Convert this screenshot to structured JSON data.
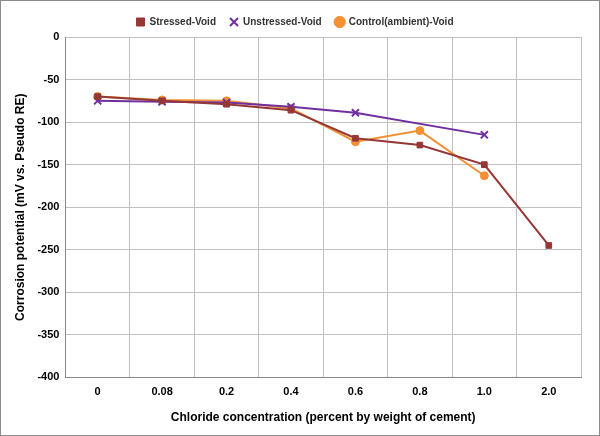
{
  "chart_data": {
    "type": "line",
    "x_label": "Chloride concentration (percent by weight of cement)",
    "y_label": "Corrosion potential (mV vs. Pseudo RE)",
    "categories": [
      "0",
      "0.08",
      "0.2",
      "0.4",
      "0.6",
      "0.8",
      "1.0",
      "2.0"
    ],
    "series": [
      {
        "name": "Stressed-Void",
        "color": "#953735",
        "marker": "square",
        "line_style": "solid",
        "values": [
          -70,
          -75,
          -79,
          -86,
          -119,
          -127,
          -150,
          -245
        ]
      },
      {
        "name": "Unstressed-Void",
        "color": "#7030a0",
        "marker": "x",
        "line_style": "solid",
        "values": [
          -75,
          -76,
          -77,
          -82,
          -89,
          null,
          -115,
          null
        ]
      },
      {
        "name": "Control(ambient)-Void",
        "color": "#f39034",
        "marker": "circle",
        "line_style": "solid",
        "values": [
          -70,
          -74,
          -75,
          -84,
          -123,
          -110,
          -163,
          null
        ]
      }
    ],
    "ylim": [
      -400,
      0
    ],
    "yticks": [
      -400,
      -350,
      -300,
      -250,
      -200,
      -150,
      -100,
      -50,
      0
    ],
    "grid": true,
    "legend": "top"
  }
}
